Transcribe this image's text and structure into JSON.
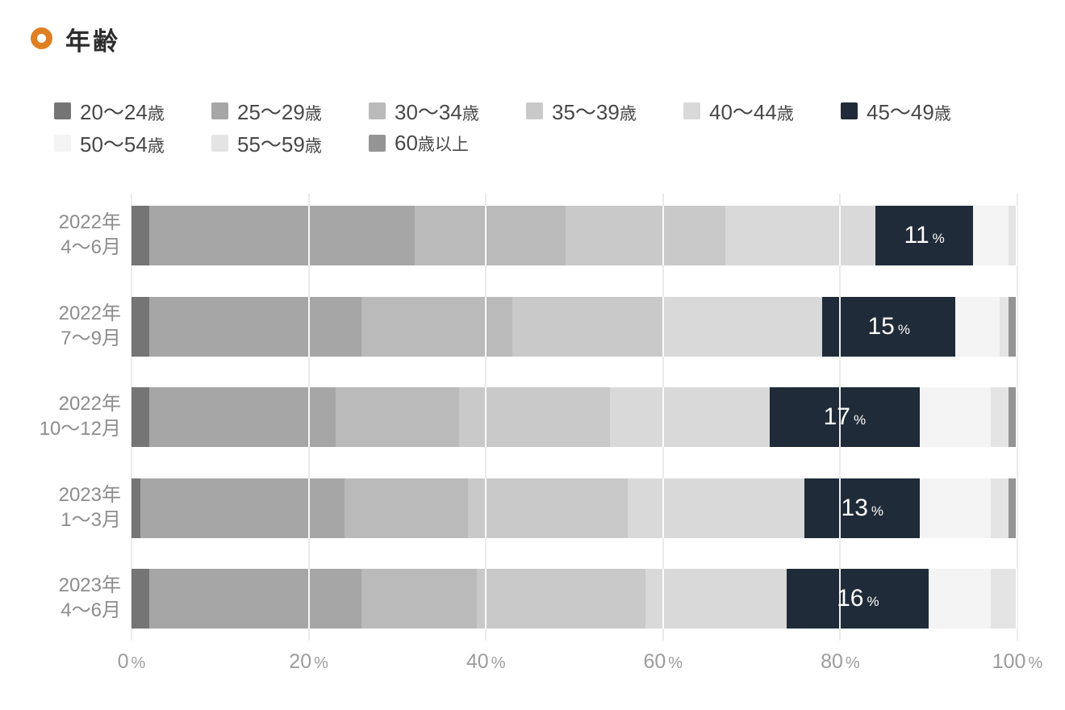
{
  "header": {
    "title": "年齢",
    "icon_color": "#de8022"
  },
  "chart_data": {
    "type": "bar",
    "orientation": "horizontal",
    "stacked": true,
    "title": "年齢",
    "categories": [
      "2022年 4〜6月",
      "2022年 7〜9月",
      "2022年 10〜12月",
      "2023年 1〜3月",
      "2023年 4〜6月"
    ],
    "category_lines": [
      [
        "2022年",
        "4〜6月"
      ],
      [
        "2022年",
        "7〜9月"
      ],
      [
        "2022年",
        "10〜12月"
      ],
      [
        "2023年",
        "1〜3月"
      ],
      [
        "2023年",
        "4〜6月"
      ]
    ],
    "series": [
      {
        "name": "20〜24歳",
        "label_num": "20〜24",
        "label_suffix": "歳",
        "color": "#757575",
        "values": [
          2,
          2,
          2,
          1,
          2
        ]
      },
      {
        "name": "25〜29歳",
        "label_num": "25〜29",
        "label_suffix": "歳",
        "color": "#a6a6a6",
        "values": [
          30,
          24,
          21,
          23,
          24
        ]
      },
      {
        "name": "30〜34歳",
        "label_num": "30〜34",
        "label_suffix": "歳",
        "color": "#bababa",
        "values": [
          17,
          17,
          14,
          14,
          13
        ]
      },
      {
        "name": "35〜39歳",
        "label_num": "35〜39",
        "label_suffix": "歳",
        "color": "#c9c9c9",
        "values": [
          18,
          17,
          17,
          18,
          19
        ]
      },
      {
        "name": "40〜44歳",
        "label_num": "40〜44",
        "label_suffix": "歳",
        "color": "#d9d9d9",
        "values": [
          17,
          18,
          18,
          20,
          16
        ]
      },
      {
        "name": "45〜49歳",
        "label_num": "45〜49",
        "label_suffix": "歳",
        "color": "#1f2b38",
        "values": [
          11,
          15,
          17,
          13,
          16
        ],
        "labeled": true
      },
      {
        "name": "50〜54歳",
        "label_num": "50〜54",
        "label_suffix": "歳",
        "color": "#f4f4f4",
        "values": [
          4,
          5,
          8,
          8,
          7
        ]
      },
      {
        "name": "55〜59歳",
        "label_num": "55〜59",
        "label_suffix": "歳",
        "color": "#e4e4e4",
        "values": [
          1,
          1,
          2,
          2,
          3
        ]
      },
      {
        "name": "60歳以上",
        "label_num": "60",
        "label_suffix": "歳以上",
        "color": "#949494",
        "values": [
          0,
          1,
          1,
          1,
          0
        ]
      }
    ],
    "value_labels": {
      "series": "45〜49歳",
      "values": [
        "11",
        "15",
        "17",
        "13",
        "16"
      ],
      "unit": "%"
    },
    "x_ticks": [
      "0",
      "20",
      "40",
      "60",
      "80",
      "100"
    ],
    "x_unit": "%",
    "xlim": [
      0,
      100
    ],
    "grid": true,
    "legend_rows": [
      6,
      3
    ],
    "legend_position": "top"
  }
}
